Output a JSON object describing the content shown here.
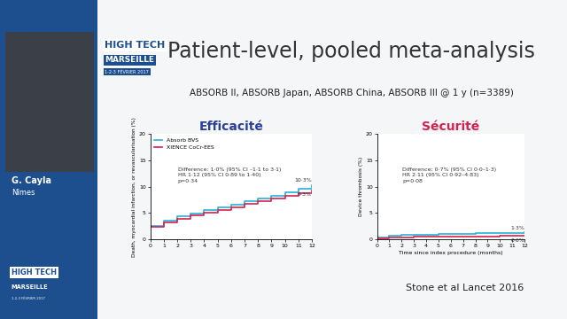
{
  "slide": {
    "title": "Patient-level, pooled meta-analysis",
    "subtitle": "ABSORB II, ABSORB Japan, ABSORB China, ABSORB III @ 1 y (n=3389)",
    "citation": "Stone et al Lancet 2016",
    "speaker": "G. Cayla",
    "city": "Nîmes",
    "logo": [
      "HIGH TECH",
      "MARSEILLE",
      "1-2-3 FÉVRIER 2017"
    ]
  },
  "chart_data": [
    {
      "type": "line",
      "title": "Efficacité",
      "title_color": "#2a3f9a",
      "ylabel": "Death, myocardial infarction, or revascularisation (%)",
      "x": [
        0,
        1,
        2,
        3,
        4,
        5,
        6,
        7,
        8,
        9,
        10,
        11,
        12
      ],
      "xlim": [
        0,
        12
      ],
      "xticks": [
        0,
        1,
        2,
        3,
        4,
        5,
        6,
        7,
        8,
        9,
        10,
        11,
        12
      ],
      "ylim": [
        0,
        20
      ],
      "yticks": [
        0,
        5,
        10,
        15,
        20
      ],
      "legend": "upper left",
      "annotations": [
        "Difference: 1·0% (95% CI –1·1 to 3·1)",
        "HR 1·12 (95% CI 0·89 to 1·40)",
        "p=0·34"
      ],
      "series": [
        {
          "name": "Absorb BVS",
          "color": "#2ab0d8",
          "end_label": "10·3%",
          "values": [
            2.5,
            3.6,
            4.3,
            4.9,
            5.5,
            6.0,
            6.6,
            7.2,
            7.7,
            8.3,
            8.9,
            9.6,
            10.3
          ]
        },
        {
          "name": "XIENCE CoCr-EES",
          "color": "#d6204e",
          "end_label": "9·3%",
          "values": [
            2.3,
            3.2,
            3.9,
            4.5,
            5.0,
            5.6,
            6.1,
            6.7,
            7.2,
            7.8,
            8.3,
            8.8,
            9.3
          ]
        }
      ]
    },
    {
      "type": "line",
      "title": "Sécurité",
      "title_color": "#d6204e",
      "ylabel": "Device thrombosis (%)",
      "xlabel": "Time since index procedure (months)",
      "x": [
        0,
        1,
        2,
        3,
        4,
        5,
        6,
        7,
        8,
        9,
        10,
        11,
        12
      ],
      "xlim": [
        0,
        12
      ],
      "xticks": [
        0,
        1,
        2,
        3,
        4,
        5,
        6,
        7,
        8,
        9,
        10,
        11,
        12
      ],
      "ylim": [
        0,
        20
      ],
      "yticks": [
        0,
        5,
        10,
        15,
        20
      ],
      "annotations": [
        "Difference: 0·7% (95% CI 0·0–1·3)",
        "HR 2·11 (95% CI 0·92–4·83)",
        "p=0·08"
      ],
      "series": [
        {
          "color": "#2ab0d8",
          "end_label": "1·3%",
          "values": [
            0.3,
            0.7,
            0.8,
            0.9,
            0.9,
            1.0,
            1.0,
            1.0,
            1.1,
            1.1,
            1.1,
            1.2,
            1.3
          ]
        },
        {
          "color": "#d6204e",
          "end_label": "0·6%",
          "values": [
            0.2,
            0.4,
            0.4,
            0.5,
            0.5,
            0.5,
            0.5,
            0.5,
            0.5,
            0.5,
            0.6,
            0.6,
            0.6
          ]
        }
      ]
    }
  ]
}
